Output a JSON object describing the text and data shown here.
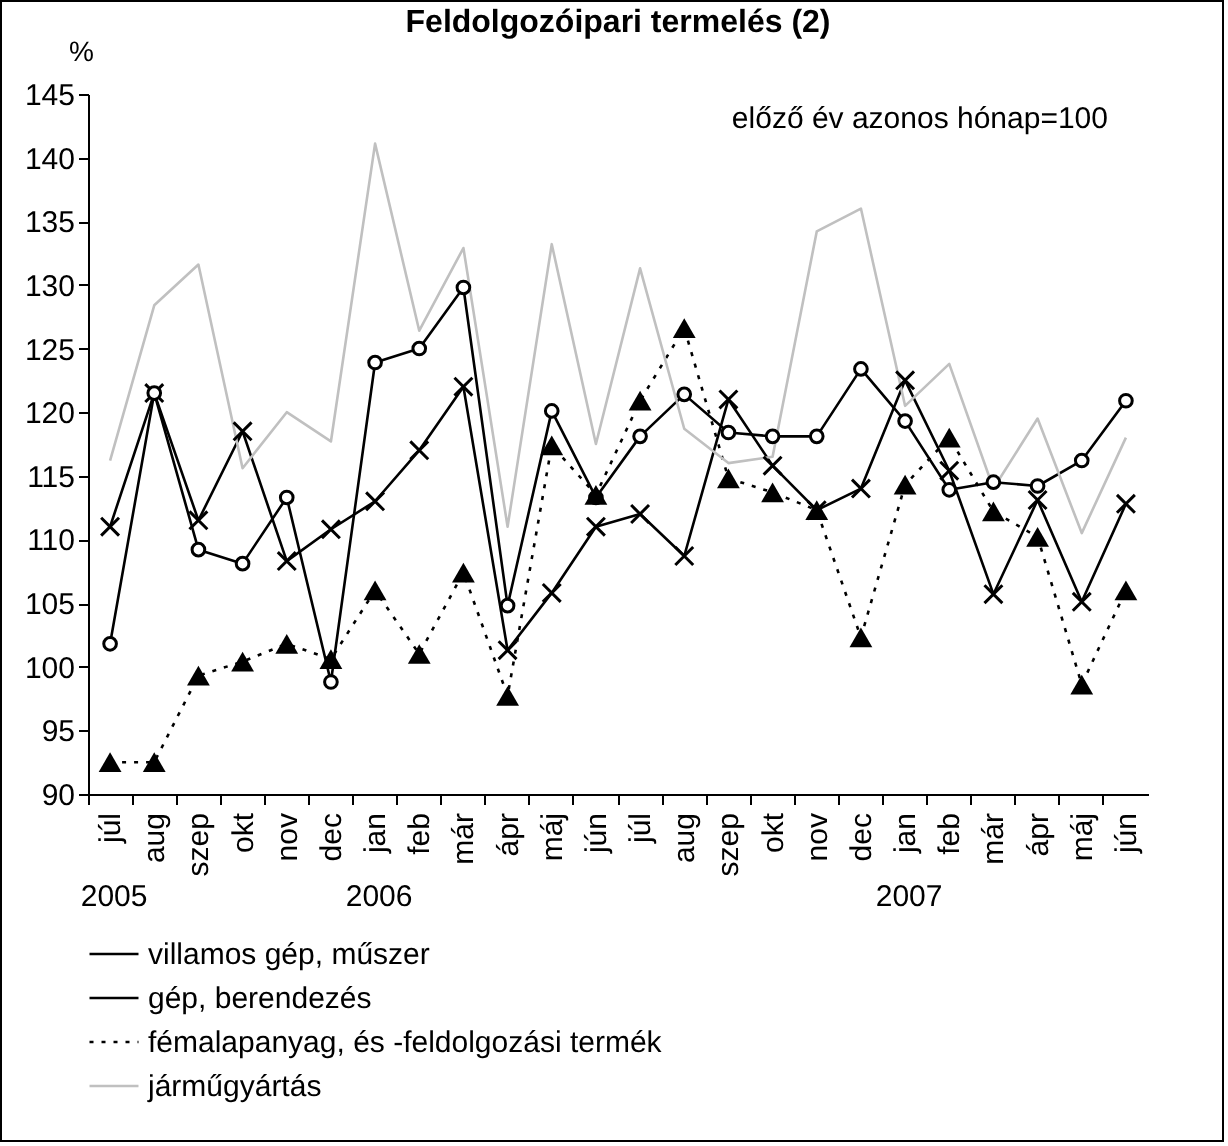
{
  "chart_data": {
    "type": "line",
    "title": "Feldolgozóipari termelés (2)",
    "subtitle": "előző év azonos hónap=100",
    "ylabel": "%",
    "categories": [
      "júl",
      "aug",
      "szep",
      "okt",
      "nov",
      "dec",
      "jan",
      "feb",
      "már",
      "ápr",
      "máj",
      "jún",
      "júl",
      "aug",
      "szep",
      "okt",
      "nov",
      "dec",
      "jan",
      "feb",
      "már",
      "ápr",
      "máj",
      "jún"
    ],
    "annotations": [
      "2005",
      "2006",
      "2007"
    ],
    "series": [
      {
        "name": "villamos gép, műszer",
        "color": "#000000",
        "marker": "cross",
        "line_style": "solid",
        "values": [
          111,
          121.5,
          111.5,
          118.5,
          108.3,
          110.8,
          113,
          117,
          122,
          101.3,
          105.8,
          111,
          112,
          108.7,
          121,
          115.8,
          112.3,
          114,
          122.5,
          115.4,
          105.7,
          113.1,
          105.1,
          112.8
        ]
      },
      {
        "name": "gép, berendezés",
        "color": "#000000",
        "marker": "circle",
        "line_style": "solid",
        "values": [
          101.8,
          121.5,
          109.2,
          108.1,
          113.3,
          98.8,
          123.9,
          125,
          129.8,
          104.8,
          120.1,
          113.3,
          118.1,
          121.4,
          118.4,
          118.1,
          118.1,
          123.4,
          119.3,
          113.9,
          114.5,
          114.2,
          116.2,
          120.9
        ]
      },
      {
        "name": "fémalapanyag, és -feldolgozási termék",
        "color": "#000000",
        "marker": "triangle",
        "line_style": "dotted",
        "values": [
          92.5,
          92.5,
          99.3,
          100.4,
          101.8,
          100.6,
          106,
          101,
          107.4,
          97.7,
          117.4,
          113.5,
          120.9,
          126.6,
          114.8,
          113.7,
          112.3,
          102.3,
          114.3,
          118,
          112.2,
          110.2,
          98.6,
          106
        ]
      },
      {
        "name": "járműgyártás",
        "color": "#c0c0c0",
        "marker": "none",
        "line_style": "solid",
        "values": [
          116.2,
          128.4,
          131.6,
          115.6,
          120,
          117.7,
          141.1,
          126.4,
          132.9,
          111,
          133.2,
          117.5,
          131.3,
          118.7,
          116,
          116.5,
          134.2,
          136,
          120.5,
          123.8,
          114,
          119.5,
          110.5,
          118
        ]
      }
    ],
    "ylim": [
      90,
      145
    ],
    "yticks": [
      90,
      95,
      100,
      105,
      110,
      115,
      120,
      125,
      130,
      135,
      140,
      145
    ],
    "legend": "bottom"
  }
}
